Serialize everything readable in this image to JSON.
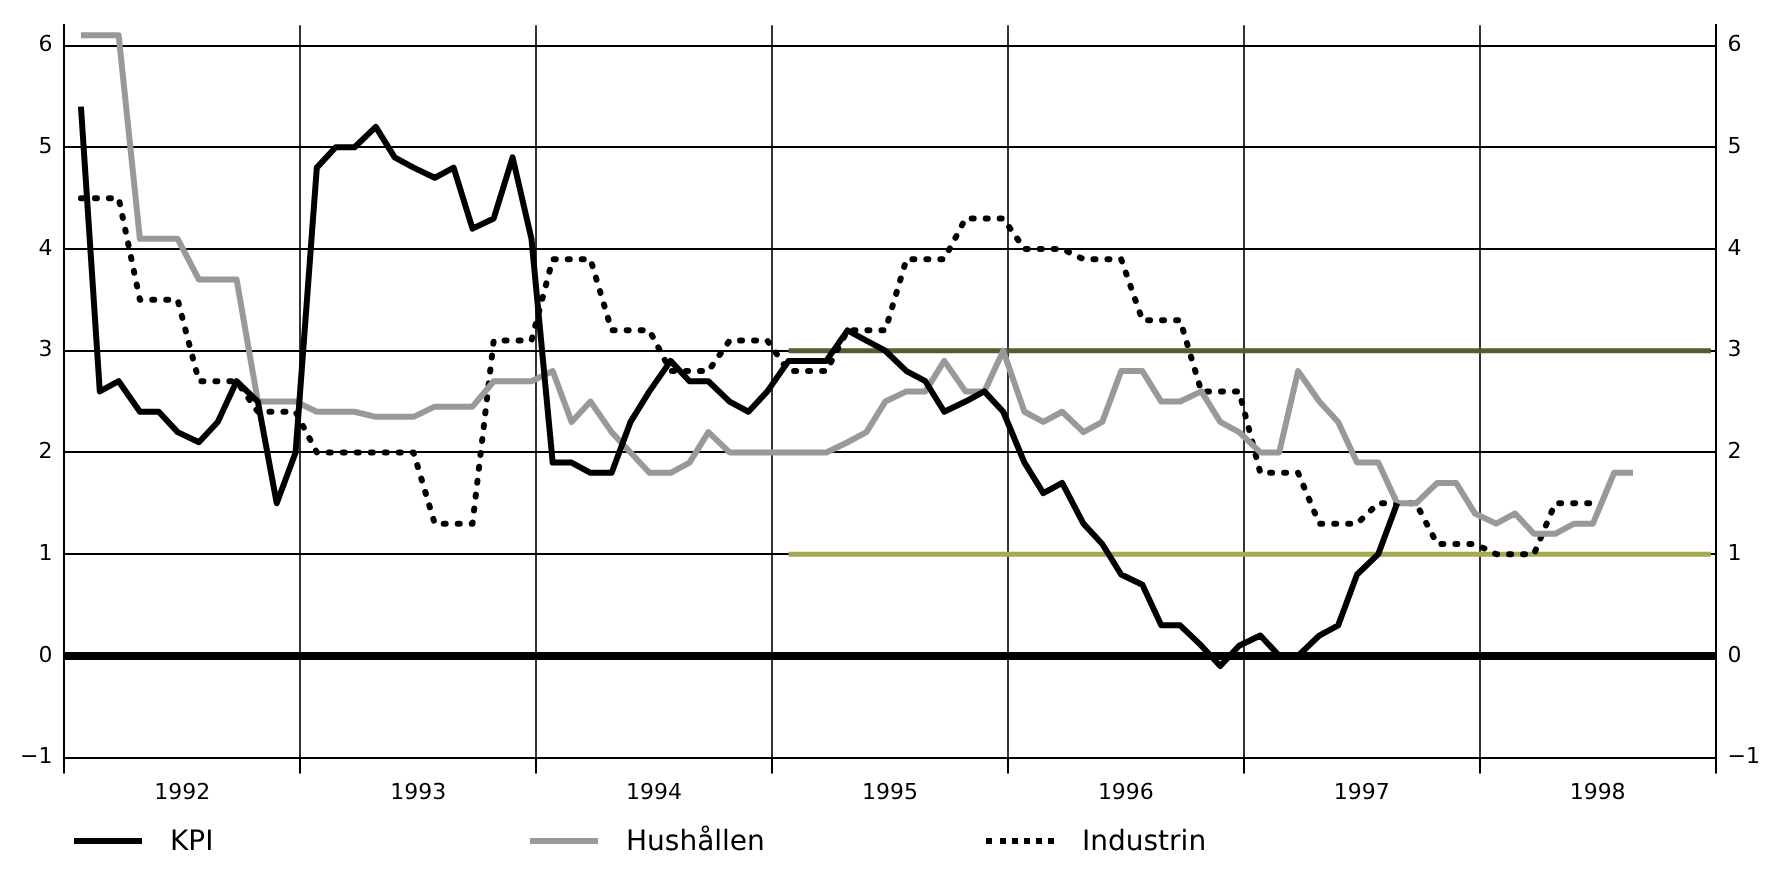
{
  "chart_data": {
    "type": "line",
    "x": [
      1992.07,
      1992.15,
      1992.23,
      1992.32,
      1992.4,
      1992.48,
      1992.57,
      1992.65,
      1992.73,
      1992.82,
      1992.9,
      1992.98,
      1993.07,
      1993.15,
      1993.23,
      1993.32,
      1993.4,
      1993.48,
      1993.57,
      1993.65,
      1993.73,
      1993.82,
      1993.9,
      1993.98,
      1994.07,
      1994.15,
      1994.23,
      1994.32,
      1994.4,
      1994.48,
      1994.57,
      1994.65,
      1994.73,
      1994.82,
      1994.9,
      1994.98,
      1995.07,
      1995.15,
      1995.23,
      1995.32,
      1995.4,
      1995.48,
      1995.57,
      1995.65,
      1995.73,
      1995.82,
      1995.9,
      1995.98,
      1996.07,
      1996.15,
      1996.23,
      1996.32,
      1996.4,
      1996.48,
      1996.57,
      1996.65,
      1996.73,
      1996.82,
      1996.9,
      1996.98,
      1997.07,
      1997.15,
      1997.23,
      1997.32,
      1997.4,
      1997.48,
      1997.57,
      1997.65,
      1997.73,
      1997.82,
      1997.9,
      1997.98,
      1998.07,
      1998.15,
      1998.23,
      1998.32,
      1998.4,
      1998.48,
      1998.57,
      1998.65,
      1998.73,
      1998.82,
      1998.9,
      1998.98
    ],
    "series": [
      {
        "name": "KPI",
        "color": "#000000",
        "line_style": "solid",
        "values": [
          5.4,
          2.6,
          2.7,
          2.4,
          2.4,
          2.2,
          2.1,
          2.3,
          2.7,
          2.5,
          1.5,
          2.0,
          4.8,
          5.0,
          5.0,
          5.2,
          4.9,
          4.8,
          4.7,
          4.8,
          4.2,
          4.3,
          4.9,
          4.1,
          1.9,
          1.9,
          1.8,
          1.8,
          2.3,
          2.6,
          2.9,
          2.7,
          2.7,
          2.5,
          2.4,
          2.6,
          2.9,
          2.9,
          2.9,
          3.2,
          3.1,
          3.0,
          2.8,
          2.7,
          2.4,
          2.5,
          2.6,
          2.4,
          1.9,
          1.6,
          1.7,
          1.3,
          1.1,
          0.8,
          0.7,
          0.3,
          0.3,
          0.1,
          -0.1,
          0.1,
          0.2,
          0.0,
          0.0,
          0.2,
          0.3,
          0.8,
          1.0,
          1.5,
          null,
          null,
          null,
          null,
          null,
          null,
          null,
          null,
          null,
          null,
          null,
          null,
          null,
          null,
          null,
          null
        ]
      },
      {
        "name": "Hushållen",
        "color": "#999999",
        "line_style": "solid",
        "values": [
          6.1,
          6.1,
          6.1,
          4.1,
          4.1,
          4.1,
          3.7,
          3.7,
          3.7,
          2.5,
          2.5,
          2.5,
          2.4,
          2.4,
          2.4,
          2.35,
          2.35,
          2.35,
          2.45,
          2.45,
          2.45,
          2.7,
          2.7,
          2.7,
          2.8,
          2.3,
          2.5,
          2.2,
          2.0,
          1.8,
          1.8,
          1.9,
          2.2,
          2.0,
          2.0,
          2.0,
          2.0,
          2.0,
          2.0,
          2.1,
          2.2,
          2.5,
          2.6,
          2.6,
          2.9,
          2.6,
          2.6,
          3.0,
          2.4,
          2.3,
          2.4,
          2.2,
          2.3,
          2.8,
          2.8,
          2.5,
          2.5,
          2.6,
          2.3,
          2.2,
          2.0,
          2.0,
          2.8,
          2.5,
          2.3,
          1.9,
          1.9,
          1.5,
          1.5,
          1.7,
          1.7,
          1.4,
          1.3,
          1.4,
          1.2,
          1.2,
          1.3,
          1.3,
          1.8,
          1.8,
          null,
          null,
          null,
          null
        ]
      },
      {
        "name": "Industrin",
        "color": "#000000",
        "line_style": "dotted",
        "values": [
          4.5,
          4.5,
          4.5,
          3.5,
          3.5,
          3.5,
          2.7,
          2.7,
          2.7,
          2.4,
          2.4,
          2.4,
          2.0,
          2.0,
          2.0,
          2.0,
          2.0,
          2.0,
          1.3,
          1.3,
          1.3,
          3.1,
          3.1,
          3.1,
          3.9,
          3.9,
          3.9,
          3.2,
          3.2,
          3.2,
          2.8,
          2.8,
          2.8,
          3.1,
          3.1,
          3.1,
          2.8,
          2.8,
          2.8,
          3.2,
          3.2,
          3.2,
          3.9,
          3.9,
          3.9,
          4.3,
          4.3,
          4.3,
          4.0,
          4.0,
          4.0,
          3.9,
          3.9,
          3.9,
          3.3,
          3.3,
          3.3,
          2.6,
          2.6,
          2.6,
          1.8,
          1.8,
          1.8,
          1.3,
          1.3,
          1.3,
          1.5,
          1.5,
          1.5,
          1.1,
          1.1,
          1.1,
          1.0,
          1.0,
          1.0,
          1.5,
          1.5,
          1.5,
          null,
          null,
          null,
          null,
          null,
          null
        ]
      },
      {
        "type": "line",
        "color": "#5a5a30",
        "line_style": "solid",
        "values": [
          null,
          null,
          null,
          null,
          null,
          null,
          null,
          null,
          null,
          null,
          null,
          null,
          null,
          null,
          null,
          null,
          null,
          null,
          null,
          null,
          null,
          null,
          null,
          null,
          null,
          null,
          null,
          null,
          null,
          null,
          null,
          null,
          null,
          null,
          null,
          null,
          3,
          3,
          3,
          3,
          3,
          3,
          3,
          3,
          3,
          3,
          3,
          3,
          3,
          3,
          3,
          3,
          3,
          3,
          3,
          3,
          3,
          3,
          3,
          3,
          3,
          3,
          3,
          3,
          3,
          3,
          3,
          3,
          3,
          3,
          3,
          3,
          3,
          3,
          3,
          3,
          3,
          3,
          3,
          3,
          3,
          3,
          3,
          3
        ]
      },
      {
        "type": "line",
        "color": "#a8a850",
        "line_style": "solid",
        "values": [
          null,
          null,
          null,
          null,
          null,
          null,
          null,
          null,
          null,
          null,
          null,
          null,
          null,
          null,
          null,
          null,
          null,
          null,
          null,
          null,
          null,
          null,
          null,
          null,
          null,
          null,
          null,
          null,
          null,
          null,
          null,
          null,
          null,
          null,
          null,
          null,
          1,
          1,
          1,
          1,
          1,
          1,
          1,
          1,
          1,
          1,
          1,
          1,
          1,
          1,
          1,
          1,
          1,
          1,
          1,
          1,
          1,
          1,
          1,
          1,
          1,
          1,
          1,
          1,
          1,
          1,
          1,
          1,
          1,
          1,
          1,
          1,
          1,
          1,
          1,
          1,
          1,
          1,
          1,
          1,
          1,
          1,
          1,
          1
        ]
      }
    ],
    "xlim": [
      1992,
      1999
    ],
    "xticks": [
      {
        "value": 1992,
        "label": null
      },
      {
        "value": 1992.5,
        "label": "1992"
      },
      {
        "value": 1993,
        "label": null
      },
      {
        "value": 1993.5,
        "label": "1993"
      },
      {
        "value": 1994,
        "label": null
      },
      {
        "value": 1994.5,
        "label": "1994"
      },
      {
        "value": 1995,
        "label": null
      },
      {
        "value": 1995.5,
        "label": "1995"
      },
      {
        "value": 1996,
        "label": null
      },
      {
        "value": 1996.5,
        "label": "1996"
      },
      {
        "value": 1997,
        "label": null
      },
      {
        "value": 1997.5,
        "label": "1997"
      },
      {
        "value": 1998,
        "label": null
      },
      {
        "value": 1998.5,
        "label": "1998"
      },
      {
        "value": 1999,
        "label": null
      }
    ],
    "ylim": [
      -1,
      6.2
    ],
    "yticks": [
      {
        "value": -1,
        "label": "−1"
      },
      0,
      1,
      2,
      3,
      4,
      5,
      6
    ],
    "y2lim": [
      -1,
      6.2
    ],
    "y2ticks": [
      {
        "value": -1,
        "label": "−1"
      },
      0,
      1,
      2,
      3,
      4,
      5,
      6
    ],
    "ref_lines": [
      {
        "axis": "y",
        "value": 0,
        "color": "#000000"
      }
    ],
    "grid": true,
    "legend": "bottom left",
    "marker": "none"
  }
}
